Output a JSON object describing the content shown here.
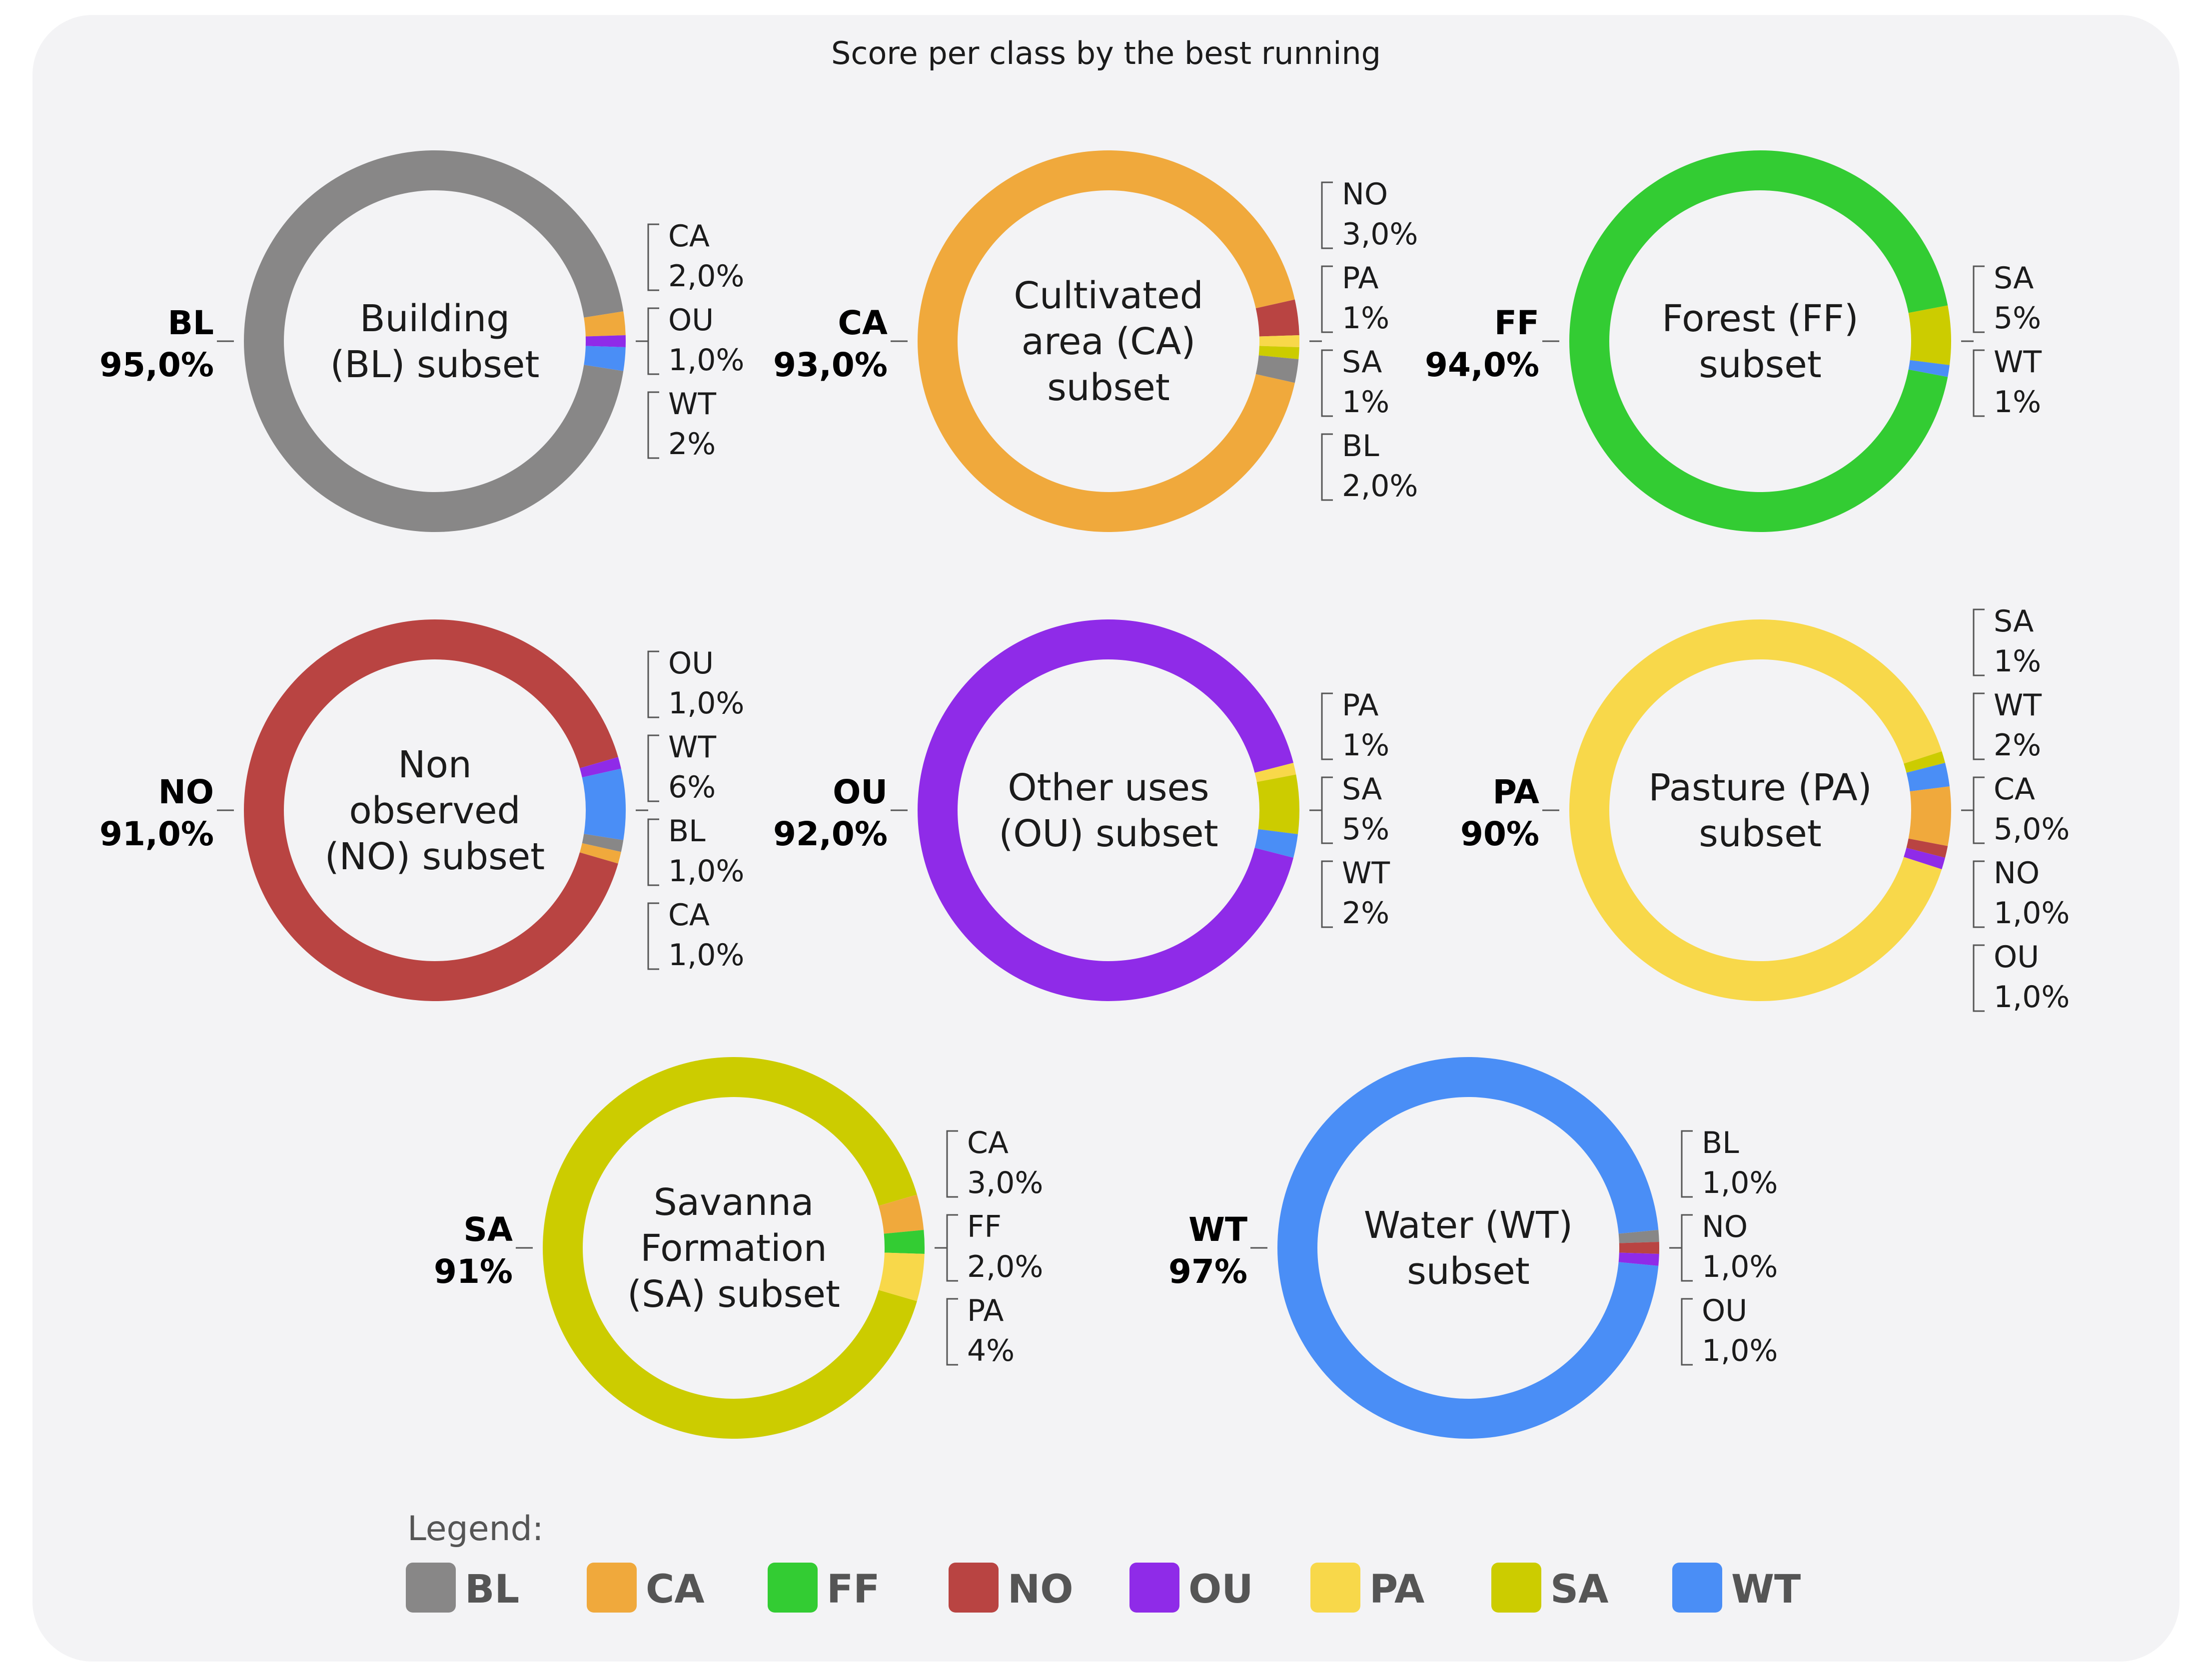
{
  "chart_data": {
    "type": "pie",
    "title": "Score per class by the best running",
    "colors": {
      "BL": "#888787",
      "CA": "#f0a93c",
      "FF": "#33cc33",
      "NO": "#b94442",
      "OU": "#8f2be8",
      "PA": "#f8d84a",
      "SA": "#cccc00",
      "WT": "#4a8ef6"
    },
    "charts": [
      {
        "subset": "BL",
        "center_label": [
          "Building",
          "(BL) subset"
        ],
        "main": {
          "code": "BL",
          "value_label": "95,0%",
          "value": 95.0
        },
        "slices": [
          {
            "code": "CA",
            "value": 2.0,
            "value_label": "2,0%"
          },
          {
            "code": "OU",
            "value": 1.0,
            "value_label": "1,0%"
          },
          {
            "code": "WT",
            "value": 2,
            "value_label": "2%"
          }
        ]
      },
      {
        "subset": "CA",
        "center_label": [
          "Cultivated",
          "area (CA)",
          "subset"
        ],
        "main": {
          "code": "CA",
          "value_label": "93,0%",
          "value": 93.0
        },
        "slices": [
          {
            "code": "NO",
            "value": 3.0,
            "value_label": "3,0%"
          },
          {
            "code": "PA",
            "value": 1,
            "value_label": "1%"
          },
          {
            "code": "SA",
            "value": 1,
            "value_label": "1%"
          },
          {
            "code": "BL",
            "value": 2.0,
            "value_label": "2,0%"
          }
        ]
      },
      {
        "subset": "FF",
        "center_label": [
          "Forest (FF)",
          "subset"
        ],
        "main": {
          "code": "FF",
          "value_label": "94,0%",
          "value": 94.0
        },
        "slices": [
          {
            "code": "SA",
            "value": 5,
            "value_label": "5%"
          },
          {
            "code": "WT",
            "value": 1,
            "value_label": "1%"
          }
        ]
      },
      {
        "subset": "NO",
        "center_label": [
          "Non",
          "observed",
          "(NO) subset"
        ],
        "main": {
          "code": "NO",
          "value_label": "91,0%",
          "value": 91.0
        },
        "slices": [
          {
            "code": "OU",
            "value": 1.0,
            "value_label": "1,0%"
          },
          {
            "code": "WT",
            "value": 6,
            "value_label": "6%"
          },
          {
            "code": "BL",
            "value": 1.0,
            "value_label": "1,0%"
          },
          {
            "code": "CA",
            "value": 1.0,
            "value_label": "1,0%"
          }
        ]
      },
      {
        "subset": "OU",
        "center_label": [
          "Other uses",
          "(OU) subset"
        ],
        "main": {
          "code": "OU",
          "value_label": "92,0%",
          "value": 92.0
        },
        "slices": [
          {
            "code": "PA",
            "value": 1,
            "value_label": "1%"
          },
          {
            "code": "SA",
            "value": 5,
            "value_label": "5%"
          },
          {
            "code": "WT",
            "value": 2,
            "value_label": "2%"
          }
        ]
      },
      {
        "subset": "PA",
        "center_label": [
          "Pasture (PA)",
          "subset"
        ],
        "main": {
          "code": "PA",
          "value_label": "90%",
          "value": 90
        },
        "slices": [
          {
            "code": "SA",
            "value": 1,
            "value_label": "1%"
          },
          {
            "code": "WT",
            "value": 2,
            "value_label": "2%"
          },
          {
            "code": "CA",
            "value": 5.0,
            "value_label": "5,0%"
          },
          {
            "code": "NO",
            "value": 1.0,
            "value_label": "1,0%"
          },
          {
            "code": "OU",
            "value": 1.0,
            "value_label": "1,0%"
          }
        ]
      },
      {
        "subset": "SA",
        "center_label": [
          "Savanna",
          "Formation",
          "(SA) subset"
        ],
        "main": {
          "code": "SA",
          "value_label": "91%",
          "value": 91
        },
        "slices": [
          {
            "code": "CA",
            "value": 3.0,
            "value_label": "3,0%"
          },
          {
            "code": "FF",
            "value": 2.0,
            "value_label": "2,0%"
          },
          {
            "code": "PA",
            "value": 4,
            "value_label": "4%"
          }
        ]
      },
      {
        "subset": "WT",
        "center_label": [
          "Water (WT)",
          "subset"
        ],
        "main": {
          "code": "WT",
          "value_label": "97%",
          "value": 97
        },
        "slices": [
          {
            "code": "BL",
            "value": 1.0,
            "value_label": "1,0%"
          },
          {
            "code": "NO",
            "value": 1.0,
            "value_label": "1,0%"
          },
          {
            "code": "OU",
            "value": 1.0,
            "value_label": "1,0%"
          }
        ]
      }
    ],
    "legend": {
      "title": "Legend:",
      "items": [
        "BL",
        "CA",
        "FF",
        "NO",
        "OU",
        "PA",
        "SA",
        "WT"
      ],
      "placement": "bottom"
    }
  }
}
